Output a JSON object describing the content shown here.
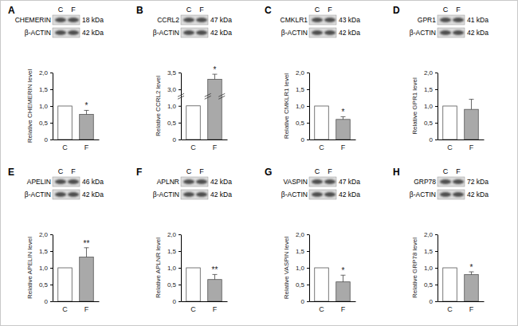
{
  "chart_data": [
    {
      "type": "bar",
      "title": "A",
      "blot": {
        "lanes": [
          "C",
          "F"
        ],
        "rows": [
          [
            "CHEMERIN",
            "18 kDa"
          ],
          [
            "β-ACTIN",
            "42 kDa"
          ]
        ]
      },
      "y_label": "Relative CHEMERIN level",
      "categories": [
        "C",
        "F"
      ],
      "values": [
        1.0,
        0.75
      ],
      "errors": [
        null,
        0.12
      ],
      "annotations": [
        {
          "text": "*",
          "category": "F"
        }
      ],
      "colors": [
        "#ffffff",
        "#a9a9a9"
      ],
      "ylim": [
        0,
        2
      ],
      "yticks": [
        0,
        {
          "value": 0.5,
          "label": "0,5"
        },
        {
          "value": 1,
          "label": "1,0"
        },
        {
          "value": 1.5,
          "label": "1,5"
        },
        {
          "value": 2,
          "label": "2,0"
        }
      ]
    },
    {
      "type": "bar",
      "title": "B",
      "blot": {
        "lanes": [
          "C",
          "F"
        ],
        "rows": [
          [
            "CCRL2",
            "47 kDa"
          ],
          [
            "β-ACTIN",
            "42 kDa"
          ]
        ]
      },
      "y_label": "Relative CCRL2 level",
      "categories": [
        "C",
        "F"
      ],
      "values": [
        1.0,
        3.3
      ],
      "errors": [
        null,
        0.15
      ],
      "annotations": [
        {
          "text": "*",
          "category": "F"
        }
      ],
      "colors": [
        "#ffffff",
        "#a9a9a9"
      ],
      "ylim": [
        0,
        3.5
      ],
      "y_break": [
        1.2,
        2.9
      ],
      "yticks": [
        0,
        {
          "value": 0.5,
          "label": "0,5"
        },
        {
          "value": 1,
          "label": "1,0"
        },
        {
          "value": 3,
          "label": "3,0"
        },
        {
          "value": 3.5,
          "label": "3,5"
        }
      ]
    },
    {
      "type": "bar",
      "title": "C",
      "blot": {
        "lanes": [
          "C",
          "F"
        ],
        "rows": [
          [
            "CMKLR1",
            "43 kDa"
          ],
          [
            "β-ACTIN",
            "42 kDa"
          ]
        ]
      },
      "y_label": "Relative CMKLR1 level",
      "categories": [
        "C",
        "F"
      ],
      "values": [
        1.0,
        0.6
      ],
      "errors": [
        null,
        0.08
      ],
      "annotations": [
        {
          "text": "*",
          "category": "F"
        }
      ],
      "colors": [
        "#ffffff",
        "#a9a9a9"
      ],
      "ylim": [
        0,
        2
      ],
      "yticks": [
        0,
        {
          "value": 0.5,
          "label": "0,5"
        },
        {
          "value": 1,
          "label": "1,0"
        },
        {
          "value": 1.5,
          "label": "1,5"
        },
        {
          "value": 2,
          "label": "2,0"
        }
      ]
    },
    {
      "type": "bar",
      "title": "D",
      "blot": {
        "lanes": [
          "C",
          "F"
        ],
        "rows": [
          [
            "GPR1",
            "41 kDa"
          ],
          [
            "β-ACTIN",
            "42 kDa"
          ]
        ]
      },
      "y_label": "Relative GPR1 level",
      "categories": [
        "C",
        "F"
      ],
      "values": [
        1.0,
        0.9
      ],
      "errors": [
        null,
        0.3
      ],
      "colors": [
        "#ffffff",
        "#a9a9a9"
      ],
      "ylim": [
        0,
        2
      ],
      "yticks": [
        0,
        {
          "value": 0.5,
          "label": "0,5"
        },
        {
          "value": 1,
          "label": "1,0"
        },
        {
          "value": 1.5,
          "label": "1,5"
        },
        {
          "value": 2,
          "label": "2,0"
        }
      ]
    },
    {
      "type": "bar",
      "title": "E",
      "blot": {
        "lanes": [
          "C",
          "F"
        ],
        "rows": [
          [
            "APELIN",
            "46 kDa"
          ],
          [
            "β-ACTIN",
            "42 kDa"
          ]
        ]
      },
      "y_label": "Relative APELIN level",
      "categories": [
        "C",
        "F"
      ],
      "values": [
        1.0,
        1.32
      ],
      "errors": [
        null,
        0.28
      ],
      "annotations": [
        {
          "text": "**",
          "category": "F"
        }
      ],
      "colors": [
        "#ffffff",
        "#a9a9a9"
      ],
      "ylim": [
        0,
        2
      ],
      "yticks": [
        0,
        {
          "value": 0.5,
          "label": "0,5"
        },
        {
          "value": 1,
          "label": "1,0"
        },
        {
          "value": 1.5,
          "label": "1,5"
        },
        {
          "value": 2,
          "label": "2,0"
        }
      ]
    },
    {
      "type": "bar",
      "title": "F",
      "blot": {
        "lanes": [
          "C",
          "F"
        ],
        "rows": [
          [
            "APLNR",
            "42 kDa"
          ],
          [
            "β-ACTIN",
            "42 kDa"
          ]
        ]
      },
      "y_label": "Relative APLNR level",
      "categories": [
        "C",
        "F"
      ],
      "values": [
        1.0,
        0.65
      ],
      "errors": [
        null,
        0.15
      ],
      "annotations": [
        {
          "text": "**",
          "category": "F"
        }
      ],
      "colors": [
        "#ffffff",
        "#a9a9a9"
      ],
      "ylim": [
        0,
        2
      ],
      "yticks": [
        0,
        {
          "value": 0.5,
          "label": "0,5"
        },
        {
          "value": 1,
          "label": "1,0"
        },
        {
          "value": 1.5,
          "label": "1,5"
        },
        {
          "value": 2,
          "label": "2,0"
        }
      ]
    },
    {
      "type": "bar",
      "title": "G",
      "blot": {
        "lanes": [
          "C",
          "F"
        ],
        "rows": [
          [
            "VASPIN",
            "47 kDa"
          ],
          [
            "β-ACTIN",
            "42 kDa"
          ]
        ]
      },
      "y_label": "Relative VASPIN level",
      "categories": [
        "C",
        "F"
      ],
      "values": [
        1.0,
        0.58
      ],
      "errors": [
        null,
        0.2
      ],
      "annotations": [
        {
          "text": "*",
          "category": "F"
        }
      ],
      "colors": [
        "#ffffff",
        "#a9a9a9"
      ],
      "ylim": [
        0,
        2
      ],
      "yticks": [
        0,
        {
          "value": 0.5,
          "label": "0,5"
        },
        {
          "value": 1,
          "label": "1,0"
        },
        {
          "value": 1.5,
          "label": "1,5"
        },
        {
          "value": 2,
          "label": "2,0"
        }
      ]
    },
    {
      "type": "bar",
      "title": "H",
      "blot": {
        "lanes": [
          "C",
          "F"
        ],
        "rows": [
          [
            "GRP78",
            "72 kDa"
          ],
          [
            "β-ACTIN",
            "42 kDa"
          ]
        ]
      },
      "y_label": "Relative GRP78 level",
      "categories": [
        "C",
        "F"
      ],
      "values": [
        1.0,
        0.8
      ],
      "errors": [
        null,
        0.08
      ],
      "annotations": [
        {
          "text": "*",
          "category": "F"
        }
      ],
      "colors": [
        "#ffffff",
        "#a9a9a9"
      ],
      "ylim": [
        0,
        2
      ],
      "yticks": [
        0,
        {
          "value": 0.5,
          "label": "0,5"
        },
        {
          "value": 1,
          "label": "1,0"
        },
        {
          "value": 1.5,
          "label": "1,5"
        },
        {
          "value": 2,
          "label": "2,0"
        }
      ]
    }
  ]
}
